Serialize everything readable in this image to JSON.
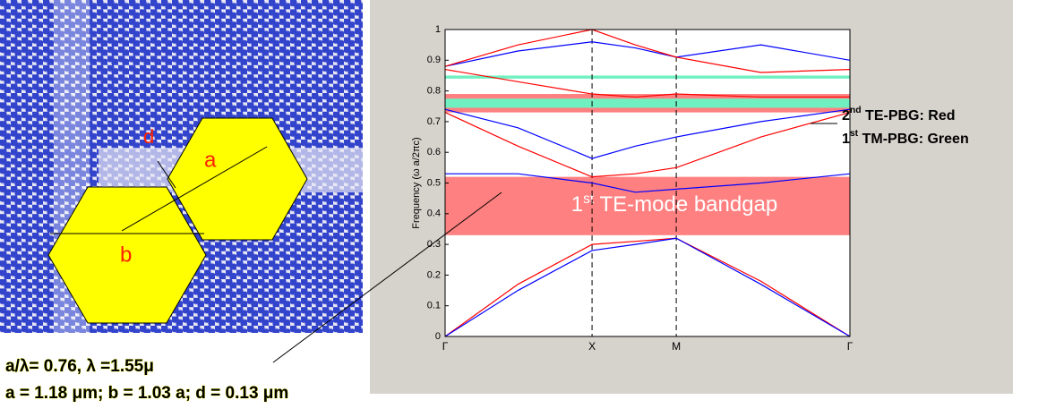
{
  "chart_data": {
    "type": "line",
    "y_label": "Frequency (ω a/2πc)",
    "xlim": [
      0,
      1
    ],
    "ylim": [
      0,
      1
    ],
    "xticks": [
      {
        "value": 0,
        "label": "Γ"
      },
      {
        "value": 0.363,
        "label": "X"
      },
      {
        "value": 0.571,
        "label": "M"
      },
      {
        "value": 1,
        "label": "Γ"
      }
    ],
    "yticks": [
      0,
      0.1,
      0.2,
      0.3,
      0.4,
      0.5,
      0.6,
      0.7,
      0.8,
      0.9,
      1
    ],
    "x": [
      0,
      0.18,
      0.363,
      0.47,
      0.571,
      0.78,
      1
    ],
    "series": [
      {
        "color": "#ff0000",
        "values": [
          0,
          0.17,
          0.3,
          0.31,
          0.32,
          0.18,
          0
        ]
      },
      {
        "color": "#0000ff",
        "values": [
          0,
          0.15,
          0.28,
          0.3,
          0.32,
          0.17,
          0
        ]
      },
      {
        "color": "#ff0000",
        "values": [
          0.73,
          0.62,
          0.52,
          0.53,
          0.55,
          0.65,
          0.73
        ]
      },
      {
        "color": "#0000ff",
        "values": [
          0.53,
          0.53,
          0.5,
          0.47,
          0.48,
          0.5,
          0.53
        ]
      },
      {
        "color": "#0000ff",
        "values": [
          0.74,
          0.68,
          0.58,
          0.62,
          0.65,
          0.7,
          0.74
        ]
      },
      {
        "color": "#ff0000",
        "values": [
          0.87,
          0.83,
          0.79,
          0.78,
          0.79,
          0.78,
          0.78
        ]
      },
      {
        "color": "#0000ff",
        "values": [
          0.88,
          0.93,
          0.96,
          0.94,
          0.91,
          0.95,
          0.9
        ]
      },
      {
        "color": "#ff0000",
        "values": [
          0.88,
          0.95,
          1,
          0.95,
          0.91,
          0.86,
          0.87
        ]
      }
    ],
    "bands": [
      {
        "ymin": 0.33,
        "ymax": 0.52,
        "color": "#ff8080",
        "label": {
          "num": "1",
          "sup": "st",
          "rest": " TE-mode bandgap"
        }
      },
      {
        "ymin": 0.73,
        "ymax": 0.79,
        "color": "#ff8080"
      },
      {
        "ymin": 0.745,
        "ymax": 0.775,
        "color": "#70f0c0"
      },
      {
        "ymin": 0.84,
        "ymax": 0.85,
        "color": "#70f0c0"
      }
    ]
  },
  "annotations": [
    {
      "num": "2",
      "sup": "nd",
      "rest": " TE-PBG: Red"
    },
    {
      "num": "1",
      "sup": "st",
      "rest": " TM-PBG: Green"
    }
  ],
  "figure_labels": {
    "a": "a",
    "b": "b",
    "d": "d"
  },
  "notes": [
    "a/λ= 0.76,  λ =1.55μ",
    "a = 1.18 μm; b = 1.03 a;  d = 0.13 μm"
  ]
}
